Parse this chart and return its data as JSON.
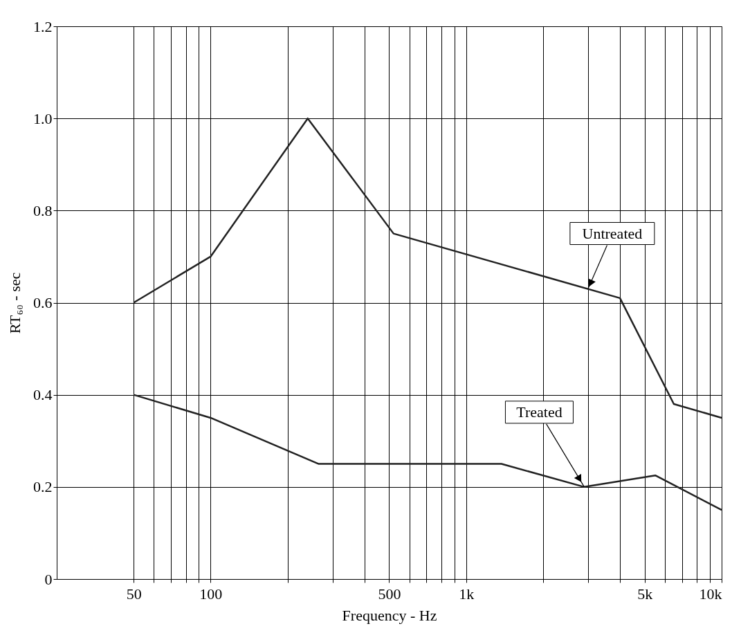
{
  "chart_data": {
    "type": "line",
    "xlabel": "Frequency - Hz",
    "ylabel": "RT₆₀ - sec",
    "log": "x",
    "grid": true,
    "legend": false,
    "marker": "none",
    "line_style": "solid",
    "xlim": [
      25,
      10000
    ],
    "xticks": [
      50,
      {
        "value": 60,
        "label": null
      },
      {
        "value": 70,
        "label": null
      },
      {
        "value": 80,
        "label": null
      },
      {
        "value": 90,
        "label": null
      },
      100,
      {
        "value": 200,
        "label": null
      },
      {
        "value": 300,
        "label": null
      },
      {
        "value": 400,
        "label": null
      },
      500,
      {
        "value": 600,
        "label": null
      },
      {
        "value": 700,
        "label": null
      },
      {
        "value": 800,
        "label": null
      },
      {
        "value": 900,
        "label": null
      },
      {
        "value": 1000,
        "label": "1k"
      },
      {
        "value": 2000,
        "label": null
      },
      {
        "value": 3000,
        "label": null
      },
      {
        "value": 4000,
        "label": null
      },
      {
        "value": 5000,
        "label": "5k"
      },
      {
        "value": 6000,
        "label": null
      },
      {
        "value": 7000,
        "label": null
      },
      {
        "value": 8000,
        "label": null
      },
      {
        "value": 9000,
        "label": null
      },
      {
        "value": 10000,
        "label": "10k"
      }
    ],
    "ylim": [
      0,
      1.2
    ],
    "yticks": [
      0,
      0.2,
      0.4,
      0.6,
      0.8,
      {
        "value": 1.0,
        "label": "1.0"
      },
      {
        "value": 1.2,
        "label": "1.2"
      }
    ],
    "series": [
      {
        "color": "#222222",
        "x": [
          50,
          100,
          240,
          520,
          4000,
          6500,
          10000
        ],
        "values": [
          0.6,
          0.7,
          1.0,
          0.75,
          0.61,
          0.38,
          0.35
        ]
      },
      {
        "color": "#222222",
        "x": [
          50,
          100,
          265,
          1375,
          2900,
          5500,
          10000
        ],
        "values": [
          0.4,
          0.35,
          0.25,
          0.25,
          0.2,
          0.225,
          0.15
        ]
      }
    ],
    "annotations": [
      {
        "text": "Untreated",
        "x": 3000,
        "y": 0.63
      },
      {
        "text": "Treated",
        "x": 2900,
        "y": 0.2
      }
    ]
  }
}
